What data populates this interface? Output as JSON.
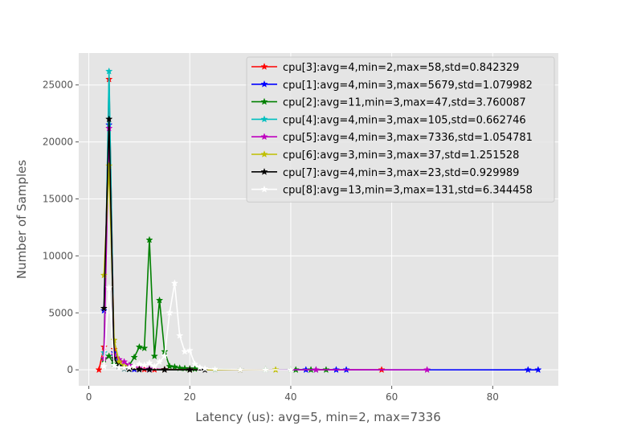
{
  "chart_data": {
    "type": "line",
    "xlabel": "Latency (us): avg=5, min=2, max=7336",
    "ylabel": "Number of Samples",
    "xlim": [
      -2,
      93
    ],
    "ylim": [
      -1400,
      27800
    ],
    "xticks": [
      0,
      20,
      40,
      60,
      80
    ],
    "yticks": [
      0,
      5000,
      10000,
      15000,
      20000,
      25000
    ],
    "grid": true,
    "legend_position": "top-right",
    "marker": "star",
    "series": [
      {
        "name": "cpu[3]:avg=4,min=2,max=58,std=0.842329",
        "color": "#ff0000",
        "x": [
          2,
          3,
          4,
          5,
          6,
          7,
          8,
          9,
          10,
          11,
          12,
          13,
          15,
          20,
          58
        ],
        "y": [
          0,
          2000,
          25500,
          1800,
          600,
          300,
          150,
          80,
          50,
          40,
          30,
          20,
          10,
          5,
          2
        ]
      },
      {
        "name": "cpu[1]:avg=4,min=3,max=5679,std=1.079982",
        "color": "#0000ff",
        "x": [
          3,
          4,
          5,
          6,
          7,
          8,
          9,
          10,
          12,
          15,
          20,
          30,
          43,
          49,
          51,
          87,
          89
        ],
        "y": [
          5200,
          21500,
          1500,
          400,
          150,
          60,
          40,
          30,
          20,
          15,
          10,
          5,
          3,
          2,
          2,
          1,
          1
        ]
      },
      {
        "name": "cpu[2]:avg=11,min=3,max=47,std=3.760087",
        "color": "#008000",
        "x": [
          3,
          4,
          5,
          6,
          7,
          8,
          9,
          10,
          11,
          12,
          13,
          14,
          15,
          16,
          17,
          18,
          19,
          20,
          21,
          25,
          30,
          35,
          40,
          41,
          44,
          47
        ],
        "y": [
          900,
          1200,
          500,
          400,
          300,
          400,
          1100,
          2000,
          1900,
          11400,
          1200,
          6100,
          1600,
          300,
          250,
          150,
          120,
          100,
          80,
          40,
          20,
          10,
          5,
          3,
          2,
          1
        ]
      },
      {
        "name": "cpu[4]:avg=4,min=3,max=105,std=0.662746",
        "color": "#00bfbf",
        "x": [
          3,
          4,
          5,
          6,
          7,
          8,
          10,
          15,
          20,
          30,
          45
        ],
        "y": [
          1500,
          26200,
          1200,
          300,
          100,
          50,
          30,
          15,
          8,
          4,
          2
        ]
      },
      {
        "name": "cpu[5]:avg=4,min=3,max=7336,std=1.054781",
        "color": "#bf00bf",
        "x": [
          3,
          4,
          5,
          6,
          7,
          8,
          9,
          10,
          12,
          15,
          20,
          30,
          45,
          67
        ],
        "y": [
          1000,
          21200,
          1300,
          900,
          700,
          400,
          250,
          150,
          80,
          40,
          20,
          8,
          3,
          1
        ]
      },
      {
        "name": "cpu[6]:avg=3,min=3,max=37,std=1.251528",
        "color": "#bfbf00",
        "x": [
          3,
          4,
          5,
          6,
          7,
          8,
          10,
          15,
          20,
          30,
          37
        ],
        "y": [
          8300,
          17900,
          2600,
          700,
          300,
          100,
          50,
          20,
          10,
          4,
          2
        ]
      },
      {
        "name": "cpu[7]:avg=4,min=3,max=23,std=0.929989",
        "color": "#000000",
        "x": [
          3,
          4,
          5,
          6,
          7,
          8,
          10,
          12,
          15,
          20,
          23
        ],
        "y": [
          5400,
          22000,
          1000,
          300,
          120,
          60,
          30,
          15,
          8,
          3,
          1
        ]
      },
      {
        "name": "cpu[8]:avg=13,min=3,max=131,std=6.344458",
        "color": "#ffffff",
        "x": [
          3,
          4,
          5,
          6,
          7,
          8,
          9,
          10,
          11,
          12,
          13,
          14,
          15,
          16,
          17,
          18,
          19,
          20,
          21,
          22,
          23,
          25,
          30,
          35,
          40
        ],
        "y": [
          300,
          7200,
          400,
          200,
          150,
          200,
          300,
          500,
          400,
          600,
          300,
          700,
          1200,
          5000,
          7600,
          3000,
          1600,
          1700,
          500,
          200,
          100,
          60,
          20,
          5,
          2
        ]
      }
    ]
  }
}
